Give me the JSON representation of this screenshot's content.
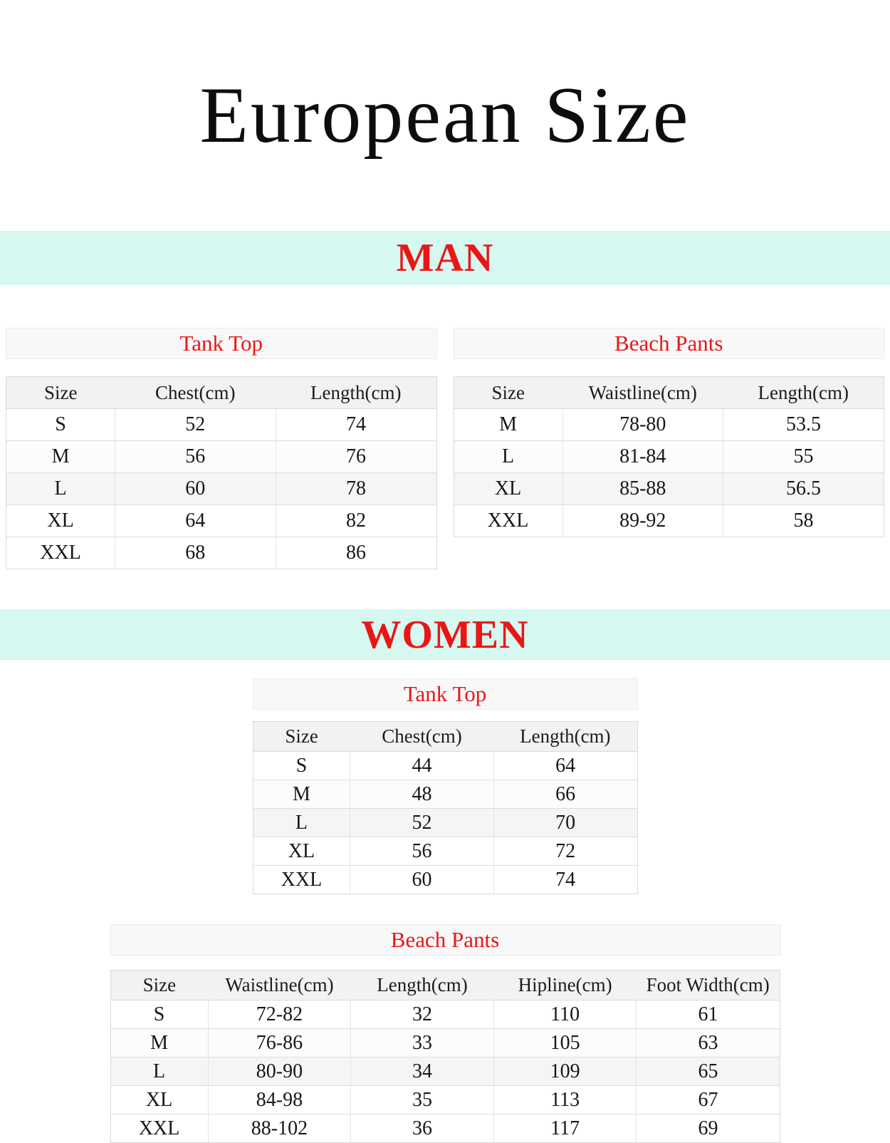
{
  "page_title": "European Size",
  "colors": {
    "accent_red": "#ea1616",
    "banner_bg": "#d5f8f1",
    "header_row_bg": "#f2f2f4"
  },
  "sections": {
    "man": {
      "banner": "MAN",
      "tank_top": {
        "title": "Tank Top",
        "headers": [
          "Size",
          "Chest(cm)",
          "Length(cm)"
        ],
        "rows": [
          [
            "S",
            "52",
            "74"
          ],
          [
            "M",
            "56",
            "76"
          ],
          [
            "L",
            "60",
            "78"
          ],
          [
            "XL",
            "64",
            "82"
          ],
          [
            "XXL",
            "68",
            "86"
          ]
        ]
      },
      "beach_pants": {
        "title": "Beach Pants",
        "headers": [
          "Size",
          "Waistline(cm)",
          "Length(cm)"
        ],
        "rows": [
          [
            "M",
            "78-80",
            "53.5"
          ],
          [
            "L",
            "81-84",
            "55"
          ],
          [
            "XL",
            "85-88",
            "56.5"
          ],
          [
            "XXL",
            "89-92",
            "58"
          ]
        ]
      }
    },
    "women": {
      "banner": "WOMEN",
      "tank_top": {
        "title": "Tank Top",
        "headers": [
          "Size",
          "Chest(cm)",
          "Length(cm)"
        ],
        "rows": [
          [
            "S",
            "44",
            "64"
          ],
          [
            "M",
            "48",
            "66"
          ],
          [
            "L",
            "52",
            "70"
          ],
          [
            "XL",
            "56",
            "72"
          ],
          [
            "XXL",
            "60",
            "74"
          ]
        ]
      },
      "beach_pants": {
        "title": "Beach Pants",
        "headers": [
          "Size",
          "Waistline(cm)",
          "Length(cm)",
          "Hipline(cm)",
          "Foot Width(cm)"
        ],
        "rows": [
          [
            "S",
            "72-82",
            "32",
            "110",
            "61"
          ],
          [
            "M",
            "76-86",
            "33",
            "105",
            "63"
          ],
          [
            "L",
            "80-90",
            "34",
            "109",
            "65"
          ],
          [
            "XL",
            "84-98",
            "35",
            "113",
            "67"
          ],
          [
            "XXL",
            "88-102",
            "36",
            "117",
            "69"
          ]
        ]
      }
    }
  }
}
